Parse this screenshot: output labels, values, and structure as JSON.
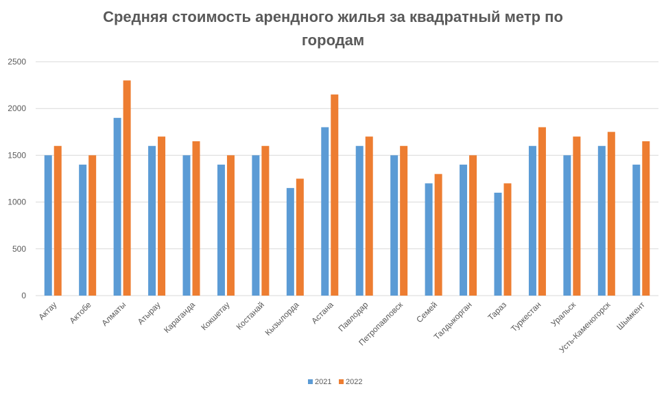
{
  "chart_data": {
    "type": "bar",
    "title_line1": "Средняя стоимость арендного жилья за квадратный метр по",
    "title_line2": "городам",
    "xlabel": "",
    "ylabel": "",
    "ylim": [
      0,
      2500
    ],
    "yticks": [
      0,
      500,
      1000,
      1500,
      2000,
      2500
    ],
    "grid": true,
    "legend_position": "bottom",
    "categories": [
      "Актау",
      "Актобе",
      "Алматы",
      "Атырау",
      "Караганда",
      "Кокшетау",
      "Костанай",
      "Кызылорда",
      "Астана",
      "Павлодар",
      "Петропавловск",
      "Семей",
      "Талдыкорган",
      "Тараз",
      "Туркестан",
      "Уральск",
      "Усть-Каменогорск",
      "Шымкент"
    ],
    "series": [
      {
        "name": "2021",
        "color": "#5B9BD5",
        "values": [
          1500,
          1400,
          1900,
          1600,
          1500,
          1400,
          1500,
          1150,
          1800,
          1600,
          1500,
          1200,
          1400,
          1100,
          1600,
          1500,
          1600,
          1400
        ]
      },
      {
        "name": "2022",
        "color": "#ED7D31",
        "values": [
          1600,
          1500,
          2300,
          1700,
          1650,
          1500,
          1600,
          1250,
          2150,
          1700,
          1600,
          1300,
          1500,
          1200,
          1800,
          1700,
          1750,
          1650
        ]
      }
    ]
  }
}
